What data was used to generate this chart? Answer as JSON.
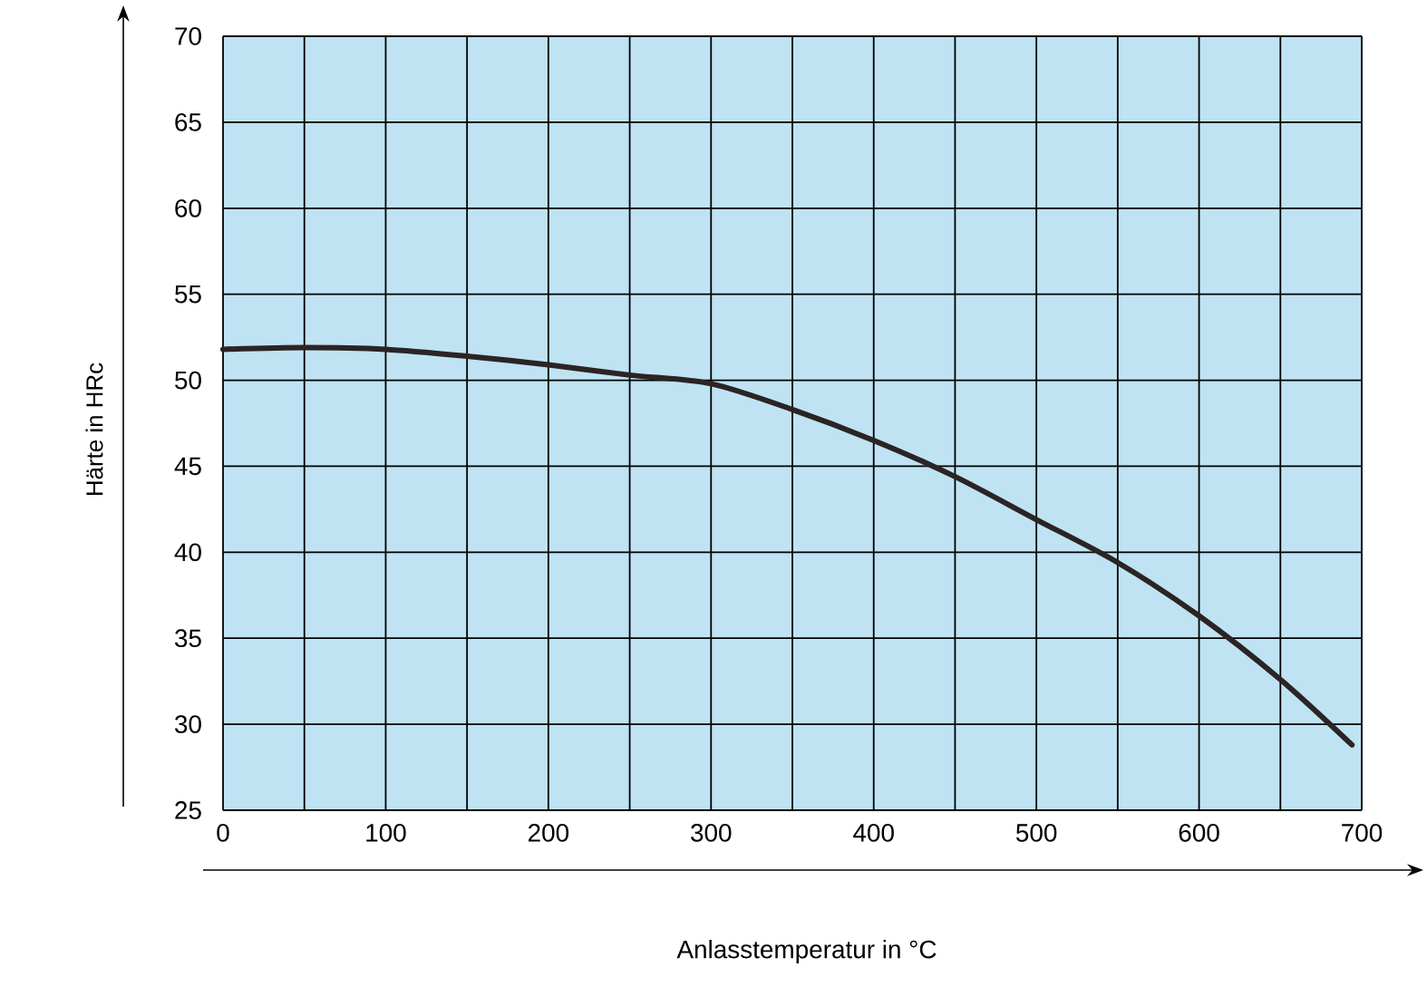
{
  "chart_data": {
    "type": "line",
    "xlabel": "Anlasstemperatur in °C",
    "ylabel": "Härte in HRc",
    "x": [
      0,
      50,
      100,
      150,
      200,
      250,
      300,
      350,
      400,
      450,
      500,
      550,
      600,
      650,
      694
    ],
    "values": [
      51.8,
      51.9,
      51.8,
      51.4,
      50.9,
      50.3,
      49.8,
      48.3,
      46.5,
      44.4,
      41.9,
      39.4,
      36.3,
      32.6,
      28.8
    ],
    "color": "#2b2424",
    "xlim": [
      0,
      700
    ],
    "ylim": [
      25,
      70
    ],
    "xticks": [
      0,
      {
        "value": 50,
        "label": null
      },
      100,
      {
        "value": 150,
        "label": null
      },
      200,
      {
        "value": 250,
        "label": null
      },
      300,
      {
        "value": 350,
        "label": null
      },
      400,
      {
        "value": 450,
        "label": null
      },
      500,
      {
        "value": 550,
        "label": null
      },
      600,
      {
        "value": 650,
        "label": null
      },
      700
    ],
    "yticks": [
      25,
      30,
      35,
      40,
      45,
      50,
      55,
      60,
      65,
      70
    ],
    "grid": true
  }
}
